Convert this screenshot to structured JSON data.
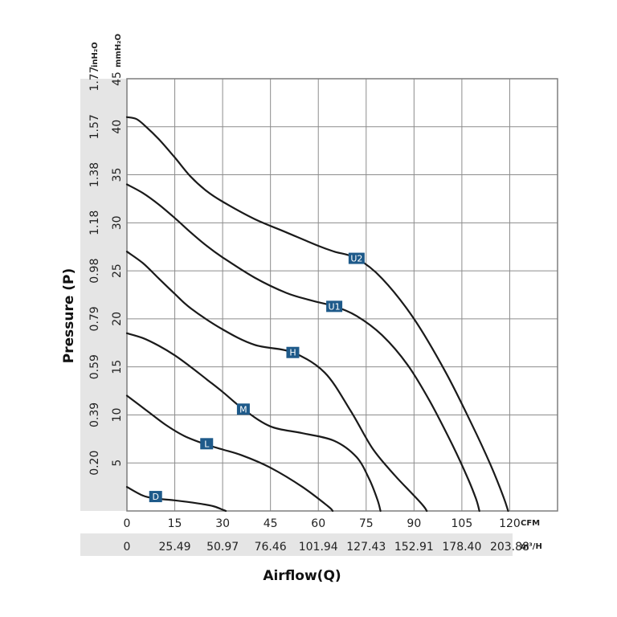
{
  "chart_data": {
    "type": "line",
    "xlabel": "Airflow(Q)",
    "ylabel": "Pressure (P)",
    "x_unit": "CFM",
    "x_unit_alt": "m³/H",
    "y_unit": "mmH₂O",
    "y_unit_alt": "inH₂O",
    "xlim": [
      0,
      135
    ],
    "ylim": [
      0,
      45
    ],
    "x_ticks": [
      "0",
      "15",
      "30",
      "45",
      "60",
      "75",
      "90",
      "105",
      "120"
    ],
    "x_ticks_alt": [
      "0",
      "25.49",
      "50.97",
      "76.46",
      "101.94",
      "127.43",
      "152.91",
      "178.40",
      "203.88"
    ],
    "y_ticks": [
      "5",
      "10",
      "15",
      "20",
      "25",
      "30",
      "35",
      "40",
      "45"
    ],
    "y_ticks_alt": [
      "0.20",
      "0.39",
      "0.59",
      "0.79",
      "0.98",
      "1.18",
      "1.38",
      "1.57",
      "1.77"
    ],
    "grid": true,
    "series": [
      {
        "name": "D",
        "label_at": [
          9,
          1.5
        ],
        "x": [
          0,
          5,
          9,
          15,
          22,
          27,
          29.5,
          31
        ],
        "y": [
          2.5,
          1.6,
          1.3,
          1.1,
          0.8,
          0.5,
          0.2,
          0
        ]
      },
      {
        "name": "L",
        "label_at": [
          25,
          7
        ],
        "x": [
          0,
          6,
          12,
          18,
          25,
          30,
          36,
          45,
          55,
          63,
          64.5
        ],
        "y": [
          12,
          10.5,
          9,
          7.8,
          6.9,
          6.4,
          5.8,
          4.5,
          2.5,
          0.5,
          0
        ]
      },
      {
        "name": "M",
        "label_at": [
          36.5,
          10.6
        ],
        "x": [
          0,
          5,
          10,
          15,
          20,
          25,
          30,
          36.5,
          45,
          55,
          65,
          72,
          76,
          78.5,
          79.5
        ],
        "y": [
          18.5,
          18,
          17.2,
          16.2,
          15,
          13.7,
          12.4,
          10.6,
          8.8,
          8.1,
          7.3,
          5.6,
          3.3,
          1.2,
          0
        ]
      },
      {
        "name": "H",
        "label_at": [
          52,
          16.5
        ],
        "x": [
          0,
          5,
          10,
          15,
          20,
          30,
          40,
          52,
          62,
          70,
          77,
          84,
          90,
          93,
          94
        ],
        "y": [
          27,
          25.8,
          24.2,
          22.6,
          21.1,
          18.9,
          17.3,
          16.5,
          14.4,
          10.5,
          6.5,
          3.7,
          1.6,
          0.5,
          0
        ]
      },
      {
        "name": "U1",
        "label_at": [
          65,
          21.3
        ],
        "x": [
          0,
          5,
          10,
          15,
          20,
          25,
          30,
          40,
          50,
          58,
          65,
          72,
          80,
          88,
          95,
          102,
          107,
          109.5,
          110.5
        ],
        "y": [
          34,
          33.1,
          31.9,
          30.5,
          29,
          27.6,
          26.4,
          24.3,
          22.7,
          21.9,
          21.3,
          20.3,
          18.3,
          15.2,
          11.4,
          6.9,
          3.3,
          1.2,
          0
        ]
      },
      {
        "name": "U2",
        "label_at": [
          72,
          26.3
        ],
        "x": [
          0,
          3,
          6,
          10,
          15,
          20,
          25,
          30,
          40,
          50,
          60,
          65,
          72,
          80,
          90,
          100,
          108,
          114,
          118,
          119.5
        ],
        "y": [
          41,
          40.8,
          40,
          38.7,
          36.8,
          34.8,
          33.3,
          32.2,
          30.4,
          29,
          27.6,
          27,
          26.3,
          24.2,
          20,
          14.4,
          9.1,
          4.8,
          1.5,
          0
        ]
      }
    ]
  }
}
